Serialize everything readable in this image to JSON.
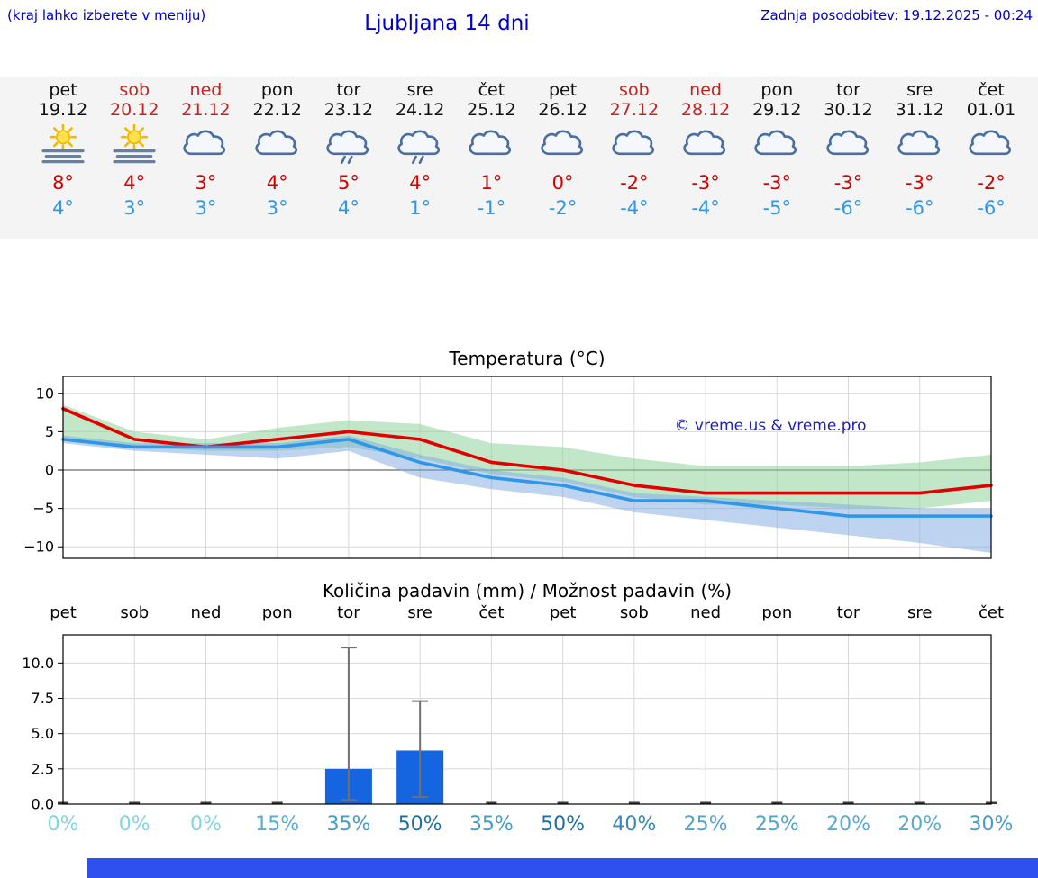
{
  "header": {
    "note": "(kraj lahko izberete v meniju)",
    "title": "Ljubljana 14 dni",
    "updated": "Zadnja posodobitev: 19.12.2025 - 00:24",
    "accent_color": "#0000cc"
  },
  "forecast": {
    "tmax_color": "#d40000",
    "tmin_color": "#2e97e8",
    "weekend_color": "#c22222",
    "weekday_color": "#111111",
    "days": [
      {
        "name": "pet",
        "date": "19.12",
        "weekend": false,
        "icon": "sun-fog",
        "tmax": "8°",
        "tmin": "4°"
      },
      {
        "name": "sob",
        "date": "20.12",
        "weekend": true,
        "icon": "sun-fog",
        "tmax": "4°",
        "tmin": "3°"
      },
      {
        "name": "ned",
        "date": "21.12",
        "weekend": true,
        "icon": "cloud",
        "tmax": "3°",
        "tmin": "3°"
      },
      {
        "name": "pon",
        "date": "22.12",
        "weekend": false,
        "icon": "cloud",
        "tmax": "4°",
        "tmin": "3°"
      },
      {
        "name": "tor",
        "date": "23.12",
        "weekend": false,
        "icon": "cloud-rain",
        "tmax": "5°",
        "tmin": "4°"
      },
      {
        "name": "sre",
        "date": "24.12",
        "weekend": false,
        "icon": "cloud-rain",
        "tmax": "4°",
        "tmin": "1°"
      },
      {
        "name": "čet",
        "date": "25.12",
        "weekend": false,
        "icon": "cloud",
        "tmax": "1°",
        "tmin": "-1°"
      },
      {
        "name": "pet",
        "date": "26.12",
        "weekend": false,
        "icon": "cloud",
        "tmax": "0°",
        "tmin": "-2°"
      },
      {
        "name": "sob",
        "date": "27.12",
        "weekend": true,
        "icon": "cloud",
        "tmax": "-2°",
        "tmin": "-4°"
      },
      {
        "name": "ned",
        "date": "28.12",
        "weekend": true,
        "icon": "cloud",
        "tmax": "-3°",
        "tmin": "-4°"
      },
      {
        "name": "pon",
        "date": "29.12",
        "weekend": false,
        "icon": "cloud",
        "tmax": "-3°",
        "tmin": "-5°"
      },
      {
        "name": "tor",
        "date": "30.12",
        "weekend": false,
        "icon": "cloud",
        "tmax": "-3°",
        "tmin": "-6°"
      },
      {
        "name": "sre",
        "date": "31.12",
        "weekend": false,
        "icon": "cloud",
        "tmax": "-3°",
        "tmin": "-6°"
      },
      {
        "name": "čet",
        "date": "01.01",
        "weekend": false,
        "icon": "cloud",
        "tmax": "-2°",
        "tmin": "-6°"
      }
    ]
  },
  "chart_data": [
    {
      "type": "line",
      "title": "Temperatura (°C)",
      "categories": [
        "pet",
        "sob",
        "ned",
        "pon",
        "tor",
        "sre",
        "čet",
        "pet",
        "sob",
        "ned",
        "pon",
        "tor",
        "sre",
        "čet"
      ],
      "series": [
        {
          "name": "Tmax",
          "color": "#e00000",
          "values": [
            8,
            4,
            3,
            4,
            5,
            4,
            1,
            0,
            -2,
            -3,
            -3,
            -3,
            -3,
            -2
          ]
        },
        {
          "name": "Tmin",
          "color": "#2e97e8",
          "values": [
            4,
            3,
            3,
            3,
            4,
            1,
            -1,
            -2,
            -4,
            -4,
            -5,
            -6,
            -6,
            -6
          ]
        }
      ],
      "bands": [
        {
          "name": "tmax-range",
          "color": "#8fd49a",
          "opacity": 0.55,
          "upper": [
            8.5,
            5,
            4,
            5.5,
            6.5,
            6,
            3.5,
            3,
            1.5,
            0.5,
            0.5,
            0.5,
            1,
            2
          ],
          "lower": [
            4,
            3,
            2.5,
            2.5,
            3,
            1.5,
            -0.5,
            -1.5,
            -3.5,
            -4.5,
            -4.5,
            -5,
            -5,
            -4
          ]
        },
        {
          "name": "tmin-range",
          "color": "#7ba7e0",
          "opacity": 0.5,
          "upper": [
            4.5,
            3.5,
            3.5,
            3.5,
            4.5,
            2,
            0,
            -1,
            -3,
            -3.5,
            -4,
            -4.5,
            -5,
            -5
          ],
          "lower": [
            3.5,
            2.5,
            2,
            1.5,
            2.5,
            -1,
            -2.5,
            -3.5,
            -5.5,
            -6.5,
            -7.5,
            -8.5,
            -9.5,
            -10.8
          ]
        }
      ],
      "ylim": [
        -11.5,
        12.2
      ],
      "yticks": [
        10,
        5,
        0,
        -5,
        -10
      ],
      "ytick_labels": [
        "10",
        "5",
        "0",
        "−5",
        "−10"
      ],
      "grid": true,
      "legend": "none",
      "watermark": {
        "text": "© vreme.us & vreme.pro",
        "color": "#2020c0"
      }
    },
    {
      "type": "bar",
      "title": "Količina padavin (mm) / Možnost padavin (%)",
      "categories": [
        "pet",
        "sob",
        "ned",
        "pon",
        "tor",
        "sre",
        "čet",
        "pet",
        "sob",
        "ned",
        "pon",
        "tor",
        "sre",
        "čet"
      ],
      "values": [
        0,
        0,
        0,
        0,
        2.5,
        3.8,
        0,
        0,
        0,
        0,
        0,
        0,
        0,
        0
      ],
      "whisker_low": [
        null,
        null,
        null,
        null,
        0.3,
        0.5,
        null,
        null,
        null,
        null,
        null,
        null,
        null,
        null
      ],
      "whisker_high": [
        null,
        null,
        null,
        null,
        11.1,
        7.3,
        null,
        null,
        null,
        null,
        null,
        null,
        null,
        null
      ],
      "bar_color": "#1565e0",
      "whisker_color": "#707070",
      "ylim": [
        0,
        12
      ],
      "yticks": [
        0,
        2.5,
        5,
        7.5,
        10
      ],
      "ytick_labels": [
        "0.0",
        "2.5",
        "5.0",
        "7.5",
        "10.0"
      ],
      "grid": true,
      "probabilities": {
        "values": [
          "0%",
          "0%",
          "0%",
          "15%",
          "35%",
          "50%",
          "35%",
          "50%",
          "40%",
          "25%",
          "25%",
          "20%",
          "20%",
          "30%"
        ],
        "colors": [
          "#80d5de",
          "#80d5de",
          "#80d5de",
          "#58abd3",
          "#449ac8",
          "#1e6fa4",
          "#449ac8",
          "#1e6fa4",
          "#3589bb",
          "#50a4cf",
          "#50a4cf",
          "#57aad3",
          "#57aad3",
          "#489cc9"
        ]
      }
    }
  ],
  "footer": {
    "color": "#2d50ee"
  }
}
